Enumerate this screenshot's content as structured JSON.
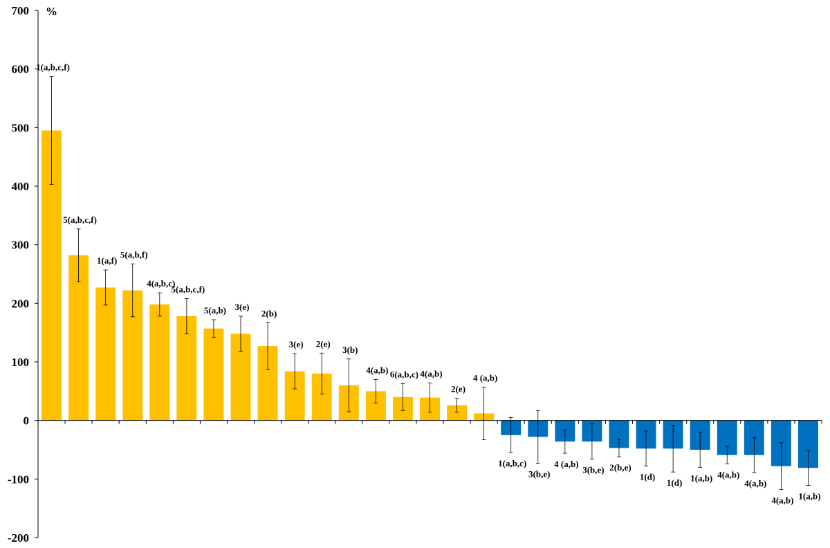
{
  "chart_data": {
    "type": "bar",
    "ylabel": "%",
    "ylim": [
      -200,
      700
    ],
    "yticks": [
      700,
      600,
      500,
      400,
      300,
      200,
      100,
      0,
      -100,
      -200
    ],
    "grid": false,
    "colors": {
      "positive": "#FFC000",
      "negative": "#0070C0",
      "axis": "#000000",
      "errorbar": "#000000"
    },
    "bars": [
      {
        "label": "1(a,b,c,f)",
        "value": 495,
        "err": 92
      },
      {
        "label": "5(a,b,c,f)",
        "value": 282,
        "err": 45
      },
      {
        "label": "1(a,f)",
        "value": 227,
        "err": 30
      },
      {
        "label": "5(a,b,f)",
        "value": 222,
        "err": 45
      },
      {
        "label": "4(a,b,c)",
        "value": 198,
        "err": 20
      },
      {
        "label": "5(a,b,c,f)",
        "value": 178,
        "err": 30
      },
      {
        "label": "5(a,b)",
        "value": 157,
        "err": 15
      },
      {
        "label": "3(e)",
        "value": 148,
        "err": 30
      },
      {
        "label": "2(b)",
        "value": 127,
        "err": 40
      },
      {
        "label": "3(e)",
        "value": 84,
        "err": 30
      },
      {
        "label": "2(e)",
        "value": 80,
        "err": 35
      },
      {
        "label": "3(b)",
        "value": 60,
        "err": 45
      },
      {
        "label": "4(a,b)",
        "value": 50,
        "err": 20
      },
      {
        "label": "6(a,b,c)",
        "value": 40,
        "err": 23
      },
      {
        "label": "4(a,b)",
        "value": 39,
        "err": 25
      },
      {
        "label": "2(e)",
        "value": 26,
        "err": 12
      },
      {
        "label": "4 (a,b)",
        "value": 12,
        "err": 45
      },
      {
        "label": "1(a,b,c)",
        "value": -25,
        "err": 30
      },
      {
        "label": "3(b,e)",
        "value": -28,
        "err": 45
      },
      {
        "label": "4 (a,b)",
        "value": -36,
        "err": 20
      },
      {
        "label": "3(b,e)",
        "value": -36,
        "err": 30
      },
      {
        "label": "2(b,e)",
        "value": -47,
        "err": 15
      },
      {
        "label": "1(d)",
        "value": -48,
        "err": 30
      },
      {
        "label": "1(d)",
        "value": -48,
        "err": 40
      },
      {
        "label": "1(a,b)",
        "value": -50,
        "err": 30
      },
      {
        "label": "4(a,b)",
        "value": -59,
        "err": 15
      },
      {
        "label": "4(a,b)",
        "value": -59,
        "err": 30
      },
      {
        "label": "4(a,b)",
        "value": -78,
        "err": 40
      },
      {
        "label": "1(a,b)",
        "value": -81,
        "err": 30
      }
    ]
  }
}
